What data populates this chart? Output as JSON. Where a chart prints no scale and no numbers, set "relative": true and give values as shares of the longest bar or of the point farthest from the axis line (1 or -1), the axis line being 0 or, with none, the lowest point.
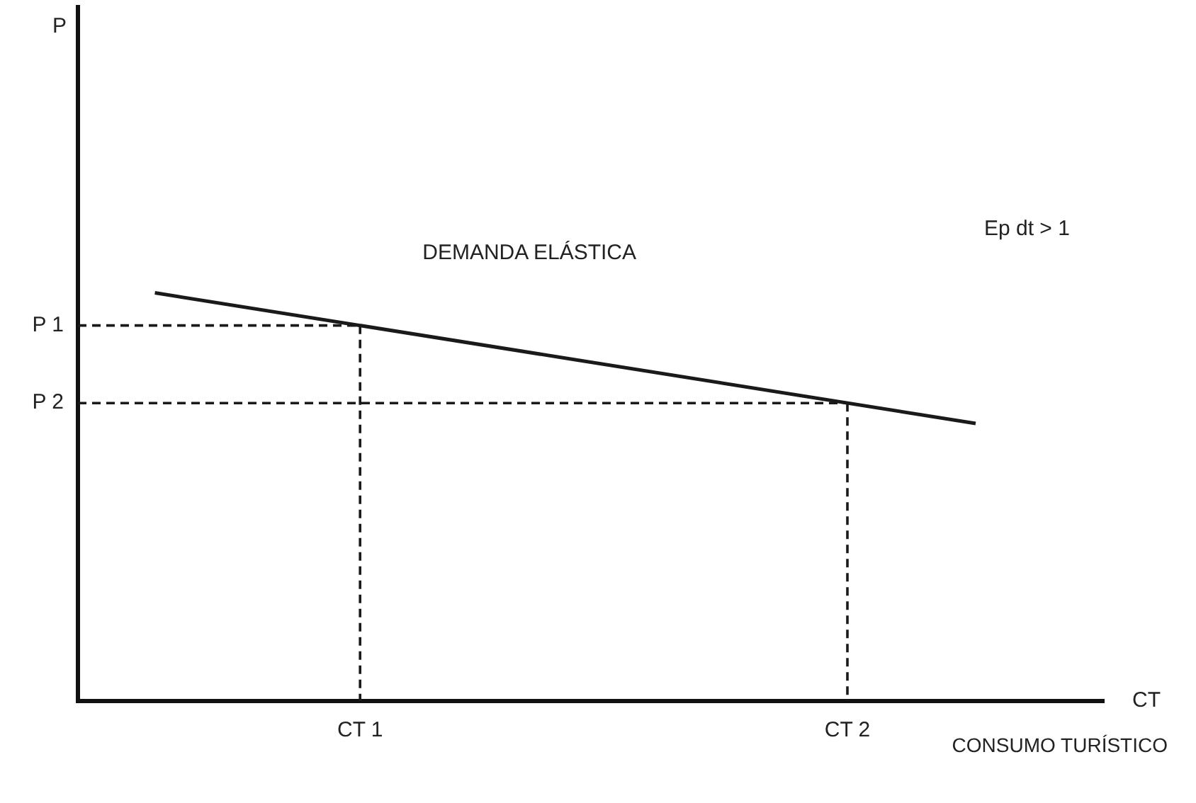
{
  "chart_data": {
    "type": "line",
    "xlabel": "CT",
    "relative": true,
    "annotations": [
      "P",
      "DEMANDA ELÁSTICA",
      "Ep dt > 1",
      "CONSUMO TURÍSTICO",
      "P 1",
      "P 2"
    ],
    "categories": [
      null,
      null,
      null,
      null,
      null,
      null,
      null,
      null,
      null,
      null,
      null,
      "CT 1",
      null,
      null,
      null,
      null,
      null,
      null,
      null,
      null,
      null,
      null,
      null,
      null,
      null,
      null,
      null,
      null,
      null,
      null,
      "CT 2",
      null,
      null,
      null,
      null,
      null,
      null,
      null,
      null,
      null,
      null
    ],
    "series": [
      {
        "color": "#1a1a1a",
        "line_style": "solid",
        "values": [
          null,
          null,
          null,
          1,
          null,
          null,
          null,
          null,
          null,
          null,
          null,
          null,
          null,
          null,
          null,
          null,
          null,
          null,
          null,
          null,
          null,
          null,
          null,
          null,
          null,
          null,
          null,
          null,
          null,
          null,
          null,
          null,
          null,
          null,
          null,
          0.68,
          null,
          null,
          null,
          null,
          null
        ]
      },
      {
        "color": "#1a1a1a",
        "line_style": "dashed",
        "values": [
          0.92,
          null,
          null,
          null,
          null,
          null,
          null,
          null,
          null,
          null,
          null,
          0.92,
          null,
          null,
          null,
          null,
          null,
          null,
          null,
          null,
          null,
          null,
          null,
          null,
          null,
          null,
          null,
          null,
          null,
          null,
          null,
          null,
          null,
          null,
          null,
          null,
          null,
          null,
          null,
          null,
          null
        ]
      },
      {
        "color": "#1a1a1a",
        "line_style": "dashed",
        "values": [
          0.73,
          null,
          null,
          null,
          null,
          null,
          null,
          null,
          null,
          null,
          null,
          null,
          null,
          null,
          null,
          null,
          null,
          null,
          null,
          null,
          null,
          null,
          null,
          null,
          null,
          null,
          null,
          null,
          null,
          null,
          0.73,
          null,
          null,
          null,
          null,
          null,
          null,
          null,
          null,
          null,
          null
        ]
      }
    ],
    "grid": false,
    "legend": false,
    "marker": "none"
  }
}
